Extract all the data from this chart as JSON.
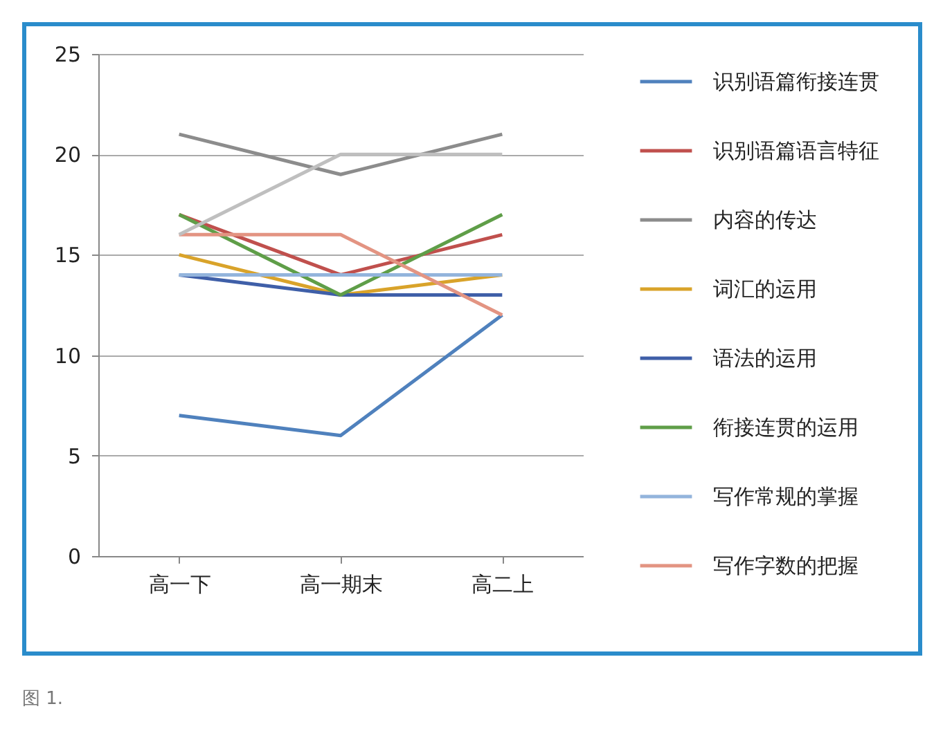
{
  "chart_data": {
    "type": "line",
    "categories": [
      "高一下",
      "高一期末",
      "高二上"
    ],
    "series": [
      {
        "name": "识别语篇衔接连贯",
        "color": "#4f81bd",
        "values": [
          7,
          6,
          12
        ]
      },
      {
        "name": "识别语篇语言特征",
        "color": "#c0504d",
        "values": [
          17,
          14,
          16
        ]
      },
      {
        "name": "内容的传达",
        "color": "#8c8c8c",
        "values": [
          21,
          19,
          21
        ]
      },
      {
        "name": "词汇的运用",
        "color": "#d9a32a",
        "values": [
          15,
          13,
          14
        ]
      },
      {
        "name": "语法的运用",
        "color": "#3f5fa8",
        "values": [
          14,
          13,
          13
        ]
      },
      {
        "name": "衔接连贯的运用",
        "color": "#5f9e48",
        "values": [
          17,
          13,
          17
        ]
      },
      {
        "name": "写作常规的掌握",
        "color": "#93b4dc",
        "values": [
          14,
          14,
          14
        ]
      },
      {
        "name": "写作字数的把握",
        "color": "#e39482",
        "values": [
          16,
          16,
          12
        ]
      },
      {
        "color": "#bfbfbf",
        "values": [
          16,
          20,
          20
        ]
      }
    ],
    "ylim": [
      0,
      25
    ],
    "yticks": [
      0,
      5,
      10,
      15,
      20,
      25
    ],
    "grid": "y",
    "legend": "right",
    "marker": "none",
    "line_style": "solid",
    "annotations": [
      "图 1."
    ]
  }
}
